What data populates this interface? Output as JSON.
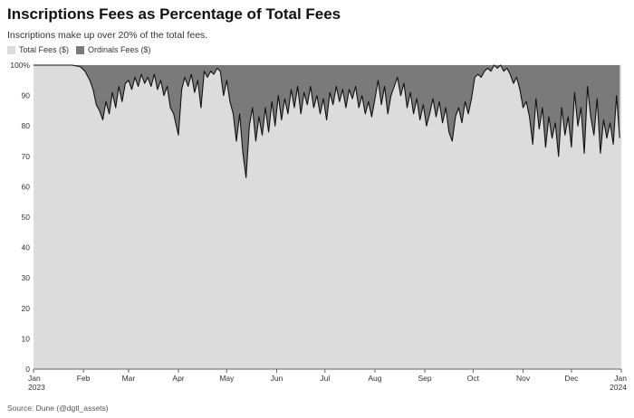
{
  "title": "Inscriptions Fees as Percentage of Total Fees",
  "subtitle": "Inscriptions make up over 20% of the total fees.",
  "source": "Source: Dune (@dgtl_assets)",
  "colors": {
    "total": "#dcdcdc",
    "ordinals": "#7a7a7a",
    "grid": "#e3e3e3",
    "axis": "#666666",
    "line": "#111111"
  },
  "chart_data": {
    "type": "area",
    "title": "Inscriptions Fees as Percentage of Total Fees",
    "subtitle": "Inscriptions make up over 20% of the total fees.",
    "xlabel": "",
    "ylabel": "",
    "ylim": [
      0,
      100
    ],
    "yticks": [
      0,
      10,
      20,
      30,
      40,
      50,
      60,
      70,
      80,
      90,
      100
    ],
    "ytick_labels": [
      "0",
      "10",
      "20",
      "30",
      "40",
      "50",
      "60",
      "70",
      "80",
      "90",
      "100%"
    ],
    "xlim": [
      "2023-01-01",
      "2024-01-01"
    ],
    "xticks": [
      "2023-01-01",
      "2023-02-01",
      "2023-03-01",
      "2023-04-01",
      "2023-05-01",
      "2023-06-01",
      "2023-07-01",
      "2023-08-01",
      "2023-09-01",
      "2023-10-01",
      "2023-11-01",
      "2023-12-01",
      "2024-01-01"
    ],
    "xtick_labels": [
      [
        "Jan",
        "2023"
      ],
      [
        "Feb",
        ""
      ],
      [
        "Mar",
        ""
      ],
      [
        "Apr",
        ""
      ],
      [
        "May",
        ""
      ],
      [
        "Jun",
        ""
      ],
      [
        "Jul",
        ""
      ],
      [
        "Aug",
        ""
      ],
      [
        "Sep",
        ""
      ],
      [
        "Oct",
        ""
      ],
      [
        "Nov",
        ""
      ],
      [
        "Dec",
        ""
      ],
      [
        "Jan",
        "2024"
      ]
    ],
    "grid": true,
    "legend_position": "top-left",
    "series": [
      {
        "name": "Total Fees ($)",
        "values": "100% everywhere (full background area)"
      },
      {
        "name": "Ordinals Fees ($)",
        "values": "share above the line"
      }
    ],
    "points": [
      [
        "2023-01-01",
        100
      ],
      [
        "2023-01-15",
        100
      ],
      [
        "2023-01-25",
        100
      ],
      [
        "2023-01-30",
        99.5
      ],
      [
        "2023-02-02",
        98
      ],
      [
        "2023-02-05",
        95
      ],
      [
        "2023-02-07",
        92
      ],
      [
        "2023-02-09",
        87
      ],
      [
        "2023-02-11",
        85
      ],
      [
        "2023-02-13",
        82
      ],
      [
        "2023-02-15",
        88
      ],
      [
        "2023-02-17",
        84
      ],
      [
        "2023-02-19",
        91
      ],
      [
        "2023-02-21",
        86
      ],
      [
        "2023-02-23",
        93
      ],
      [
        "2023-02-25",
        88
      ],
      [
        "2023-02-27",
        94
      ],
      [
        "2023-03-01",
        95
      ],
      [
        "2023-03-03",
        92
      ],
      [
        "2023-03-05",
        96
      ],
      [
        "2023-03-07",
        93
      ],
      [
        "2023-03-09",
        97
      ],
      [
        "2023-03-11",
        94
      ],
      [
        "2023-03-13",
        96
      ],
      [
        "2023-03-15",
        93
      ],
      [
        "2023-03-17",
        97
      ],
      [
        "2023-03-19",
        92
      ],
      [
        "2023-03-21",
        95
      ],
      [
        "2023-03-23",
        90
      ],
      [
        "2023-03-25",
        93
      ],
      [
        "2023-03-27",
        86
      ],
      [
        "2023-03-29",
        84
      ],
      [
        "2023-04-01",
        77
      ],
      [
        "2023-04-03",
        92
      ],
      [
        "2023-04-05",
        96
      ],
      [
        "2023-04-07",
        93
      ],
      [
        "2023-04-09",
        97
      ],
      [
        "2023-04-11",
        91
      ],
      [
        "2023-04-13",
        95
      ],
      [
        "2023-04-15",
        86
      ],
      [
        "2023-04-17",
        98
      ],
      [
        "2023-04-19",
        96
      ],
      [
        "2023-04-21",
        98
      ],
      [
        "2023-04-23",
        97
      ],
      [
        "2023-04-25",
        99
      ],
      [
        "2023-04-27",
        98
      ],
      [
        "2023-04-29",
        90
      ],
      [
        "2023-05-01",
        95
      ],
      [
        "2023-05-03",
        88
      ],
      [
        "2023-05-05",
        84
      ],
      [
        "2023-05-07",
        75
      ],
      [
        "2023-05-09",
        84
      ],
      [
        "2023-05-11",
        71
      ],
      [
        "2023-05-13",
        63
      ],
      [
        "2023-05-15",
        80
      ],
      [
        "2023-05-17",
        86
      ],
      [
        "2023-05-19",
        75
      ],
      [
        "2023-05-21",
        83
      ],
      [
        "2023-05-23",
        77
      ],
      [
        "2023-05-25",
        86
      ],
      [
        "2023-05-27",
        78
      ],
      [
        "2023-05-29",
        88
      ],
      [
        "2023-05-31",
        80
      ],
      [
        "2023-06-02",
        90
      ],
      [
        "2023-06-04",
        82
      ],
      [
        "2023-06-06",
        89
      ],
      [
        "2023-06-08",
        84
      ],
      [
        "2023-06-10",
        92
      ],
      [
        "2023-06-12",
        86
      ],
      [
        "2023-06-14",
        93
      ],
      [
        "2023-06-16",
        84
      ],
      [
        "2023-06-18",
        91
      ],
      [
        "2023-06-20",
        87
      ],
      [
        "2023-06-22",
        93
      ],
      [
        "2023-06-24",
        86
      ],
      [
        "2023-06-26",
        90
      ],
      [
        "2023-06-28",
        84
      ],
      [
        "2023-06-30",
        89
      ],
      [
        "2023-07-02",
        82
      ],
      [
        "2023-07-04",
        91
      ],
      [
        "2023-07-06",
        87
      ],
      [
        "2023-07-08",
        93
      ],
      [
        "2023-07-10",
        88
      ],
      [
        "2023-07-12",
        92
      ],
      [
        "2023-07-14",
        86
      ],
      [
        "2023-07-16",
        92
      ],
      [
        "2023-07-18",
        89
      ],
      [
        "2023-07-20",
        93
      ],
      [
        "2023-07-22",
        86
      ],
      [
        "2023-07-24",
        90
      ],
      [
        "2023-07-26",
        84
      ],
      [
        "2023-07-28",
        88
      ],
      [
        "2023-07-30",
        83
      ],
      [
        "2023-08-01",
        89
      ],
      [
        "2023-08-03",
        95
      ],
      [
        "2023-08-05",
        87
      ],
      [
        "2023-08-07",
        93
      ],
      [
        "2023-08-09",
        84
      ],
      [
        "2023-08-11",
        90
      ],
      [
        "2023-08-13",
        93
      ],
      [
        "2023-08-15",
        96
      ],
      [
        "2023-08-17",
        90
      ],
      [
        "2023-08-19",
        94
      ],
      [
        "2023-08-21",
        86
      ],
      [
        "2023-08-23",
        91
      ],
      [
        "2023-08-25",
        84
      ],
      [
        "2023-08-27",
        89
      ],
      [
        "2023-08-29",
        82
      ],
      [
        "2023-08-31",
        87
      ],
      [
        "2023-09-02",
        80
      ],
      [
        "2023-09-04",
        84
      ],
      [
        "2023-09-06",
        89
      ],
      [
        "2023-09-08",
        83
      ],
      [
        "2023-09-10",
        88
      ],
      [
        "2023-09-12",
        81
      ],
      [
        "2023-09-14",
        86
      ],
      [
        "2023-09-16",
        78
      ],
      [
        "2023-09-18",
        75
      ],
      [
        "2023-09-20",
        83
      ],
      [
        "2023-09-22",
        86
      ],
      [
        "2023-09-24",
        81
      ],
      [
        "2023-09-26",
        88
      ],
      [
        "2023-09-28",
        84
      ],
      [
        "2023-09-30",
        89
      ],
      [
        "2023-10-02",
        96
      ],
      [
        "2023-10-04",
        97
      ],
      [
        "2023-10-06",
        96
      ],
      [
        "2023-10-08",
        98
      ],
      [
        "2023-10-10",
        99
      ],
      [
        "2023-10-12",
        98
      ],
      [
        "2023-10-14",
        100
      ],
      [
        "2023-10-16",
        99
      ],
      [
        "2023-10-18",
        100
      ],
      [
        "2023-10-20",
        98
      ],
      [
        "2023-10-22",
        99
      ],
      [
        "2023-10-24",
        97
      ],
      [
        "2023-10-26",
        94
      ],
      [
        "2023-10-28",
        96
      ],
      [
        "2023-10-30",
        92
      ],
      [
        "2023-11-01",
        86
      ],
      [
        "2023-11-03",
        88
      ],
      [
        "2023-11-05",
        83
      ],
      [
        "2023-11-07",
        74
      ],
      [
        "2023-11-09",
        89
      ],
      [
        "2023-11-11",
        79
      ],
      [
        "2023-11-13",
        86
      ],
      [
        "2023-11-15",
        73
      ],
      [
        "2023-11-17",
        83
      ],
      [
        "2023-11-19",
        76
      ],
      [
        "2023-11-21",
        81
      ],
      [
        "2023-11-23",
        70
      ],
      [
        "2023-11-25",
        86
      ],
      [
        "2023-11-27",
        77
      ],
      [
        "2023-11-29",
        83
      ],
      [
        "2023-12-01",
        73
      ],
      [
        "2023-12-03",
        91
      ],
      [
        "2023-12-05",
        80
      ],
      [
        "2023-12-07",
        86
      ],
      [
        "2023-12-09",
        71
      ],
      [
        "2023-12-11",
        93
      ],
      [
        "2023-12-13",
        83
      ],
      [
        "2023-12-15",
        77
      ],
      [
        "2023-12-17",
        89
      ],
      [
        "2023-12-19",
        71
      ],
      [
        "2023-12-21",
        82
      ],
      [
        "2023-12-23",
        76
      ],
      [
        "2023-12-25",
        81
      ],
      [
        "2023-12-27",
        74
      ],
      [
        "2023-12-29",
        90
      ],
      [
        "2023-12-31",
        76
      ]
    ]
  }
}
